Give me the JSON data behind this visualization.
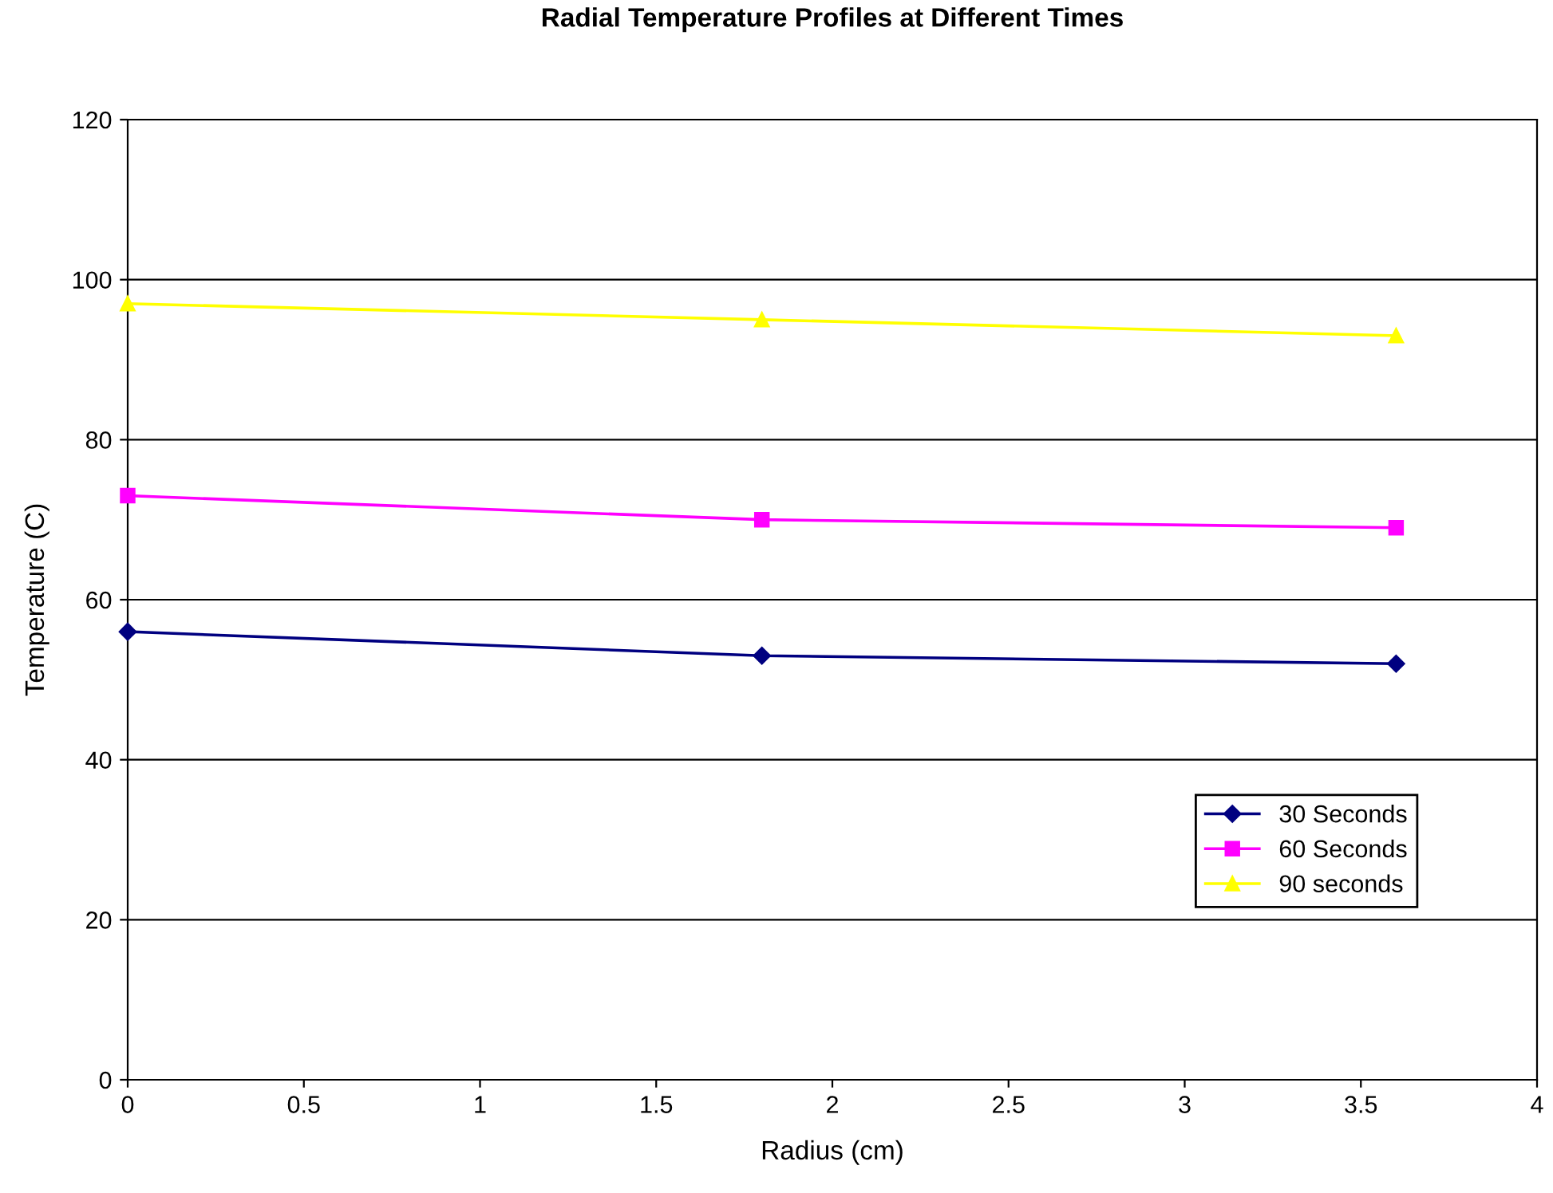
{
  "chart_data": {
    "type": "line",
    "title": "Radial Temperature Profiles at Different Times",
    "xlabel": "Radius (cm)",
    "ylabel": "Temperature (C)",
    "x": [
      0,
      1.8,
      3.6
    ],
    "series": [
      {
        "name": "30 Seconds",
        "color": "#000080",
        "marker": "diamond",
        "values": [
          56,
          53,
          52
        ]
      },
      {
        "name": "60 Seconds",
        "color": "#ff00ff",
        "marker": "square",
        "values": [
          73,
          70,
          69
        ]
      },
      {
        "name": "90 seconds",
        "color": "#ffff00",
        "marker": "triangle",
        "values": [
          97,
          95,
          93
        ]
      }
    ],
    "xlim": [
      0,
      4
    ],
    "xticks": [
      0,
      0.5,
      1,
      1.5,
      2,
      2.5,
      3,
      3.5,
      4
    ],
    "ylim": [
      0,
      120
    ],
    "yticks": [
      0,
      20,
      40,
      60,
      80,
      100,
      120
    ],
    "grid": "y",
    "legend": "lower right",
    "line_style": "solid"
  }
}
